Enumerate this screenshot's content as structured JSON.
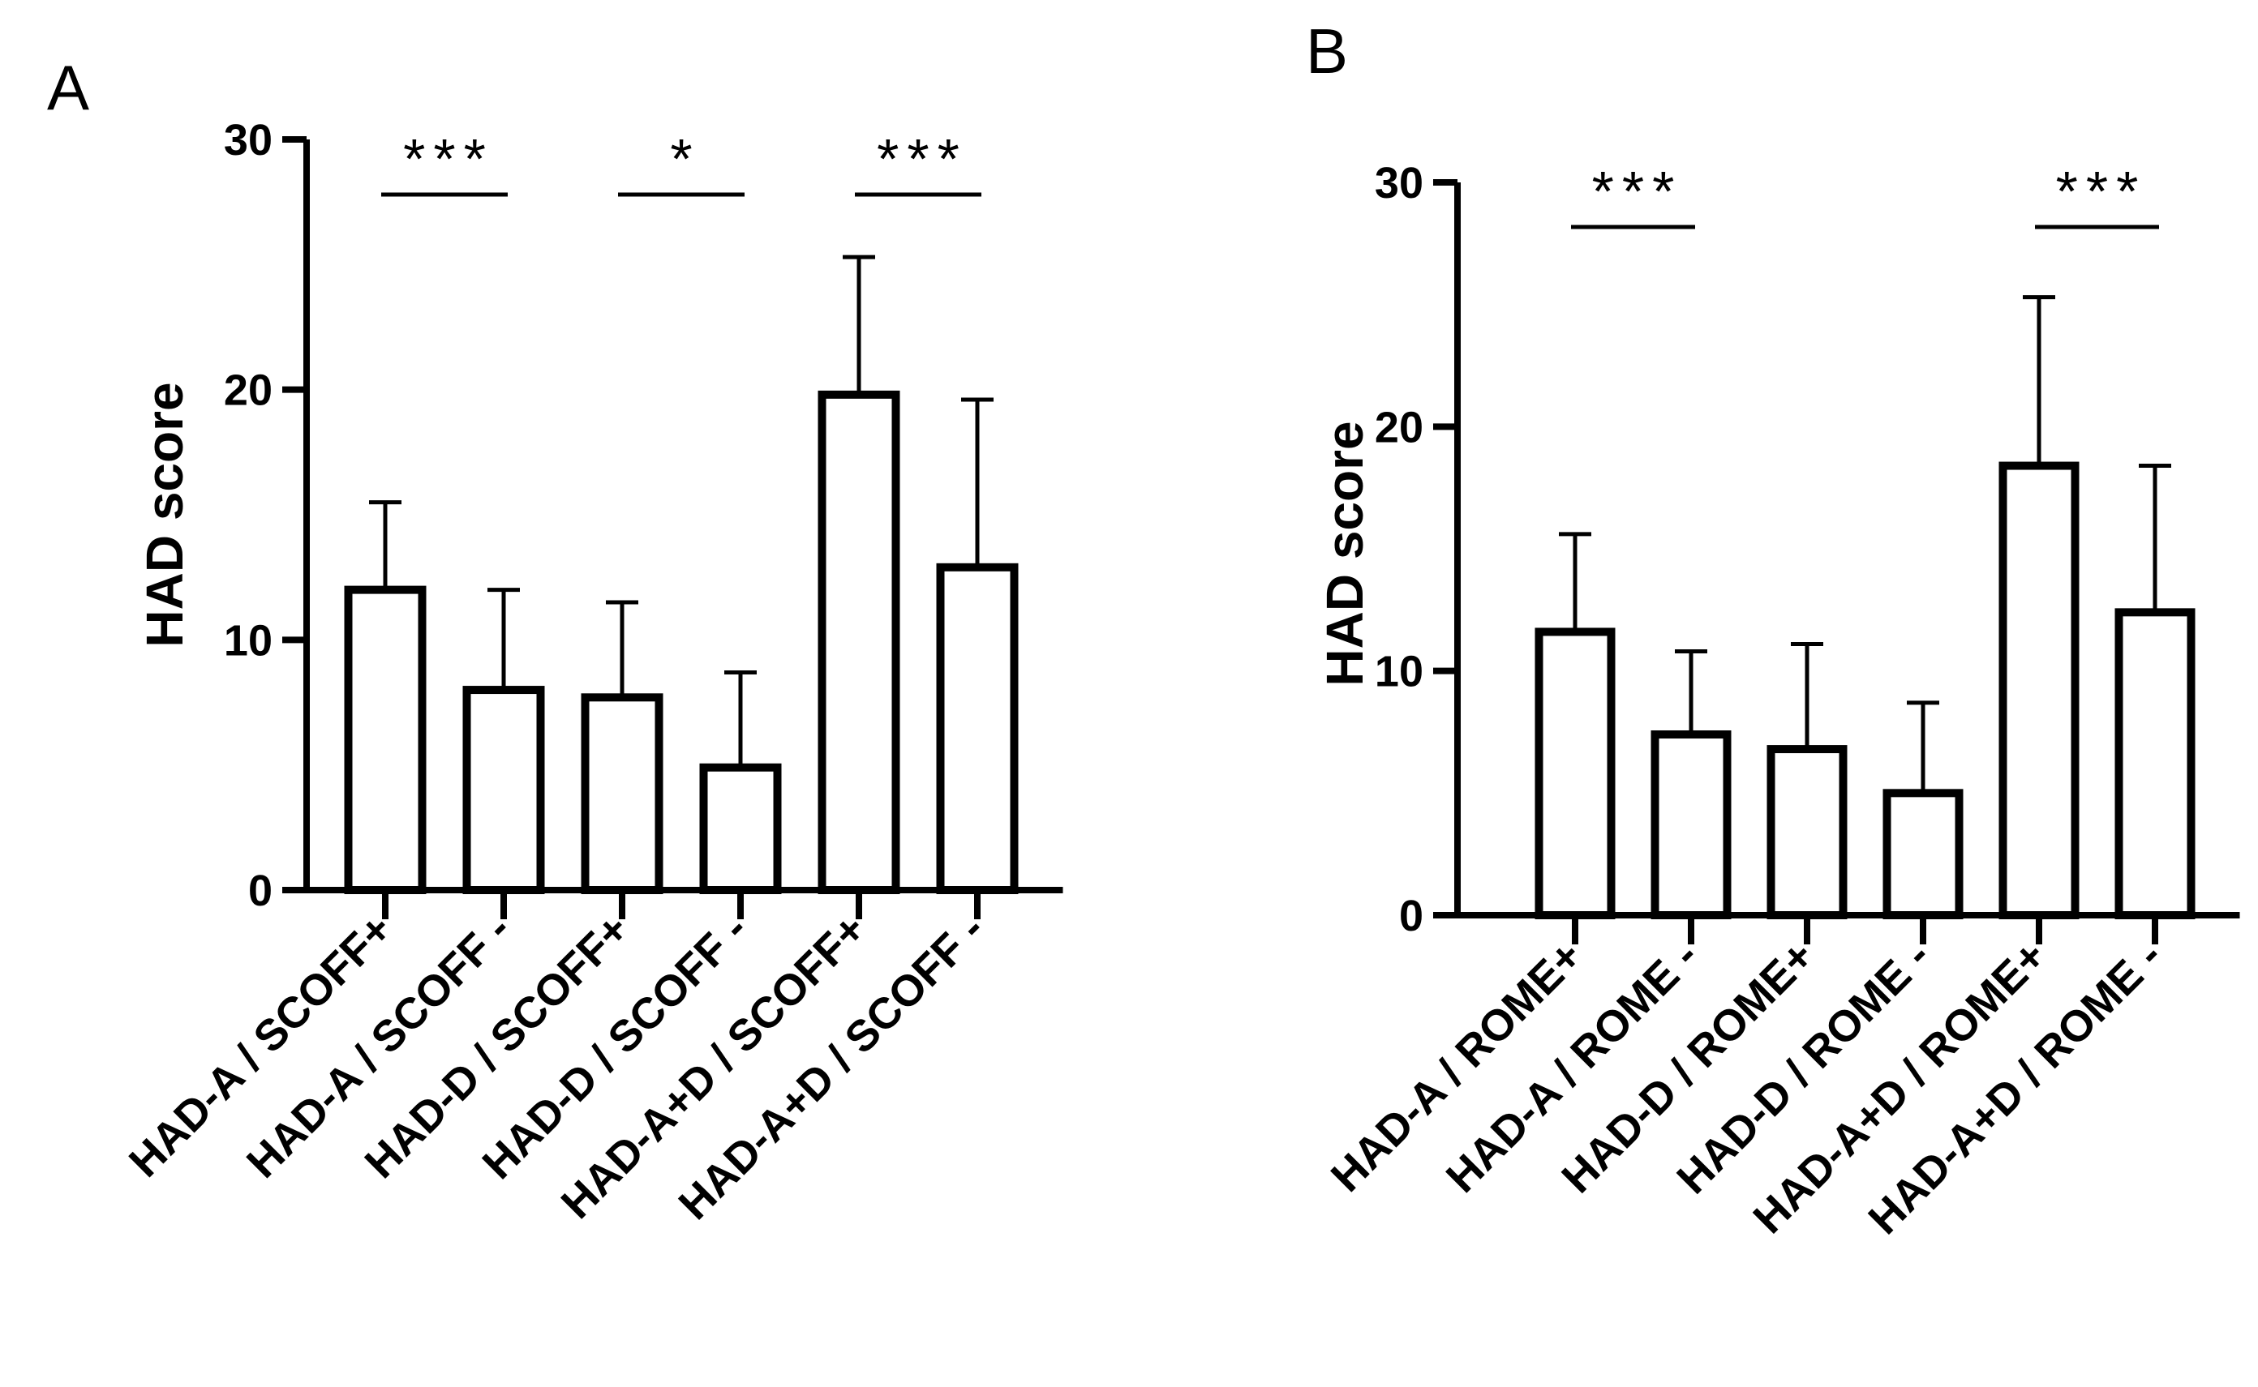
{
  "chart_data": [
    {
      "type": "bar",
      "panel": "A",
      "title": "",
      "xlabel": "",
      "ylabel": "HAD score",
      "ylim": [
        0,
        30
      ],
      "yticks": [
        0,
        10,
        20,
        30
      ],
      "categories": [
        "HAD-A / SCOFF+",
        "HAD-A / SCOFF -",
        "HAD-D / SCOFF+",
        "HAD-D / SCOFF -",
        "HAD-A+D / SCOFF+",
        "HAD-A+D / SCOFF -"
      ],
      "series": [
        {
          "name": "HAD score",
          "values": [
            12.0,
            8.0,
            7.7,
            4.9,
            19.8,
            12.9
          ],
          "error_upper": [
            15.5,
            12.0,
            11.5,
            8.7,
            25.3,
            19.6
          ]
        }
      ],
      "significance": [
        {
          "from": 0,
          "to": 1,
          "label": "***"
        },
        {
          "from": 2,
          "to": 3,
          "label": "*"
        },
        {
          "from": 4,
          "to": 5,
          "label": "***"
        }
      ]
    },
    {
      "type": "bar",
      "panel": "B",
      "title": "",
      "xlabel": "",
      "ylabel": "HAD score",
      "ylim": [
        0,
        30
      ],
      "yticks": [
        0,
        10,
        20,
        30
      ],
      "categories": [
        "HAD-A / ROME+",
        "HAD-A / ROME -",
        "HAD-D / ROME+",
        "HAD-D / ROME -",
        "HAD-A+D / ROME+",
        "HAD-A+D / ROME -"
      ],
      "series": [
        {
          "name": "HAD score",
          "values": [
            11.6,
            7.4,
            6.8,
            5.0,
            18.4,
            12.4
          ],
          "error_upper": [
            15.6,
            10.8,
            11.1,
            8.7,
            25.3,
            18.4
          ]
        }
      ],
      "significance": [
        {
          "from": 0,
          "to": 1,
          "label": "***"
        },
        {
          "from": 4,
          "to": 5,
          "label": "***"
        }
      ]
    }
  ]
}
